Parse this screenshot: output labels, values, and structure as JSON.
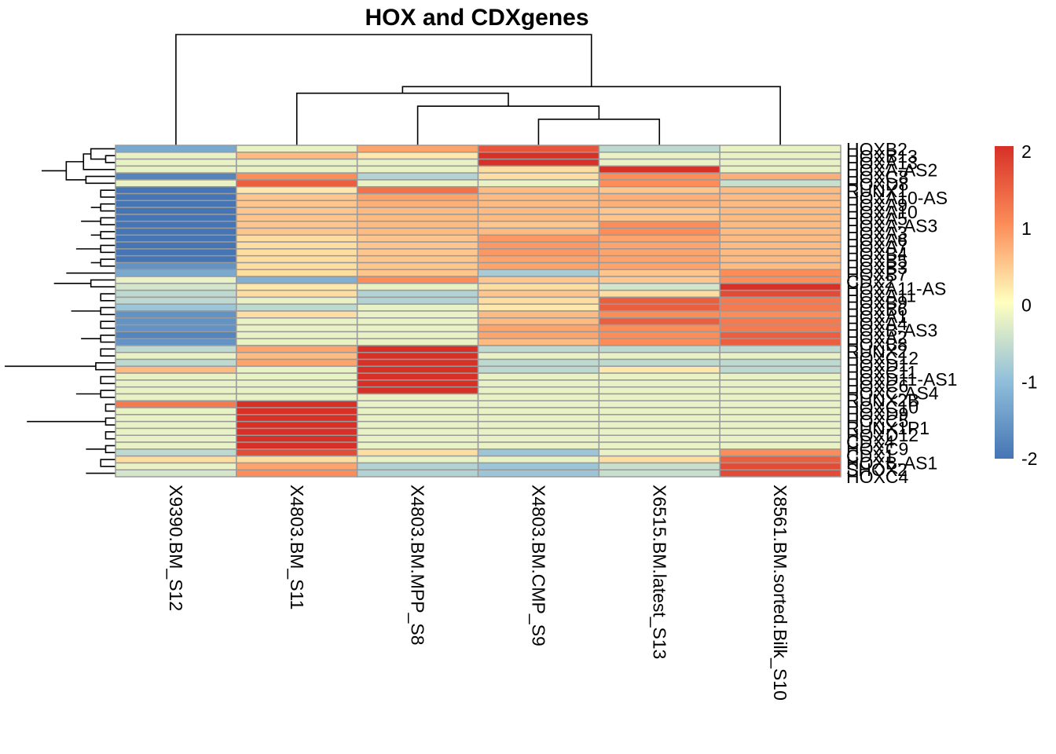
{
  "chart_data": {
    "type": "heatmap",
    "title": "HOX and CDXgenes",
    "columns": [
      "X9390.BM_S12",
      "X4803.BM_S11",
      "X4803.BM.MPP_S8",
      "X4803.BM.CMP_S9",
      "X6515.BM.latest_S13",
      "X8561.BM.sorted.Bilk_S10"
    ],
    "rows": [
      "HOXB2",
      "HOXB13",
      "HOXA13",
      "HOXA-AS2",
      "HOXC8",
      "HOXD8",
      "RUNX1",
      "HOXA10-AS",
      "HOXA9",
      "HOXA10",
      "HOXA5",
      "HOXA-AS3",
      "HOXA3",
      "HOXA6",
      "HOXA7",
      "HOXB4",
      "HOXB5",
      "HOXB3",
      "HOXB7",
      "CDX2",
      "HOXA11-AS",
      "HOXA11",
      "HOXB9",
      "HOXB6",
      "HOXA1",
      "HOXA4",
      "HOXB-AS3",
      "HOXA2",
      "HOXB8",
      "RUNX2",
      "HOXC12",
      "HOXD1",
      "HOXC11",
      "HOXD11-AS1",
      "HOXC6",
      "HOXC-AS4",
      "RUNX2B",
      "HOXC10",
      "HOXD9",
      "HOXC5",
      "RUNX1P1",
      "HOXD12",
      "CDX4",
      "HOXC9",
      "CDX1",
      "HOXB-AS1",
      "SHOX2",
      "HOXC4"
    ],
    "row_labels_visible": [
      "HOXB2",
      "HOXB13",
      "HOXA13",
      "HOXA-AS2",
      "HOXC8",
      "HOXD8",
      "RUNX1",
      "HOXA10-AS",
      "HOXA9",
      "HOXA10",
      "HOXA5",
      "HOXA-AS3",
      "HOXA3",
      "HOXA6",
      "HOXA7",
      "HOXB4",
      "HOXB5",
      "HOXB3",
      "HOXB7",
      "CDX2",
      "HOXA11-AS",
      "HOXA11",
      "HOXB9",
      "HOXB6",
      "HOXA1",
      "HOXA4",
      "HOXB-AS3",
      "HOXA2",
      "HOXB8",
      "RUNX2",
      "HOXC12",
      "HOXD1",
      "HOXC11",
      "HOXD11-AS1",
      "HOXC6",
      "HOXC-AS4",
      "RUNX2B",
      "HOXC10",
      "HOXD9",
      "HOXC5",
      "RUNX1P1",
      "HOXD12",
      "CDX4",
      "HOXC9",
      "CDX1",
      "HOXB-AS1",
      "SHOX2",
      "HOXC4"
    ],
    "values": [
      [
        -1.3,
        -0.2,
        0.8,
        1.6,
        -0.6,
        -0.2
      ],
      [
        -0.2,
        0.6,
        0.2,
        2.0,
        -0.2,
        -0.2
      ],
      [
        -0.2,
        -0.2,
        -0.2,
        2.0,
        -0.2,
        -0.2
      ],
      [
        -0.2,
        -0.2,
        -0.2,
        0.3,
        2.0,
        -0.2
      ],
      [
        -1.8,
        1.0,
        -0.7,
        0.3,
        1.0,
        0.7
      ],
      [
        -0.2,
        1.5,
        -0.2,
        -0.2,
        1.0,
        -0.5
      ],
      [
        -2.0,
        0.2,
        1.3,
        0.6,
        0.5,
        0.6
      ],
      [
        -2.0,
        0.5,
        0.8,
        0.6,
        0.7,
        0.6
      ],
      [
        -2.0,
        0.5,
        0.7,
        0.6,
        0.7,
        0.6
      ],
      [
        -2.0,
        0.5,
        0.6,
        0.6,
        0.5,
        0.6
      ],
      [
        -2.0,
        0.5,
        0.6,
        0.6,
        0.5,
        0.6
      ],
      [
        -2.0,
        0.5,
        0.6,
        0.5,
        1.0,
        0.6
      ],
      [
        -2.0,
        0.5,
        0.6,
        0.6,
        1.0,
        0.6
      ],
      [
        -2.0,
        0.3,
        0.5,
        0.9,
        0.8,
        0.6
      ],
      [
        -2.0,
        0.3,
        0.5,
        0.9,
        0.8,
        0.6
      ],
      [
        -2.0,
        0.3,
        0.5,
        0.9,
        0.8,
        0.6
      ],
      [
        -2.0,
        0.3,
        0.5,
        0.8,
        0.8,
        0.6
      ],
      [
        -1.6,
        0.3,
        0.5,
        0.8,
        0.8,
        0.6
      ],
      [
        -1.3,
        0.3,
        0.5,
        -0.8,
        0.5,
        1.0
      ],
      [
        -0.2,
        -1.2,
        1.0,
        0.5,
        0.5,
        1.0
      ],
      [
        -0.4,
        0.2,
        -0.2,
        0.3,
        -0.4,
        2.0
      ],
      [
        -0.6,
        0.3,
        -0.7,
        0.5,
        0.3,
        1.7
      ],
      [
        -0.6,
        -0.2,
        -0.7,
        0.3,
        1.5,
        1.2
      ],
      [
        -0.9,
        -0.6,
        -0.2,
        0.2,
        1.5,
        1.2
      ],
      [
        -1.6,
        0.3,
        -0.2,
        0.6,
        1.0,
        1.0
      ],
      [
        -1.6,
        -0.2,
        -0.2,
        0.6,
        1.5,
        1.2
      ],
      [
        -1.6,
        -0.2,
        -0.2,
        0.8,
        1.0,
        1.2
      ],
      [
        -1.8,
        -0.2,
        -0.2,
        0.8,
        1.0,
        1.5
      ],
      [
        -1.6,
        -0.2,
        -0.2,
        0.6,
        1.0,
        1.5
      ],
      [
        -0.6,
        0.8,
        2.0,
        -0.6,
        -0.6,
        -0.6
      ],
      [
        -0.2,
        0.6,
        2.0,
        -0.2,
        -0.2,
        -0.2
      ],
      [
        -0.6,
        0.8,
        2.0,
        -0.6,
        -0.6,
        -0.6
      ],
      [
        0.6,
        -0.2,
        2.0,
        -0.6,
        0.2,
        -0.6
      ],
      [
        -0.2,
        -0.2,
        2.0,
        -0.2,
        -0.2,
        -0.2
      ],
      [
        -0.2,
        -0.2,
        2.0,
        -0.2,
        -0.2,
        -0.2
      ],
      [
        -0.2,
        -0.2,
        2.0,
        -0.2,
        -0.2,
        -0.2
      ],
      [
        -0.2,
        -0.2,
        -0.2,
        -0.2,
        -0.2,
        -0.2
      ],
      [
        1.2,
        2.0,
        -0.2,
        -0.2,
        -0.2,
        -0.2
      ],
      [
        -0.2,
        2.0,
        -0.2,
        -0.2,
        -0.2,
        -0.2
      ],
      [
        -0.2,
        2.0,
        -0.2,
        -0.2,
        -0.2,
        -0.2
      ],
      [
        -0.2,
        2.0,
        -0.2,
        -0.2,
        -0.2,
        -0.2
      ],
      [
        -0.2,
        2.0,
        -0.2,
        -0.2,
        -0.2,
        -0.2
      ],
      [
        -0.2,
        2.0,
        -0.2,
        -0.2,
        -0.2,
        -0.2
      ],
      [
        -0.2,
        2.0,
        -0.2,
        -0.2,
        -0.2,
        -0.2
      ],
      [
        -0.6,
        1.7,
        0.3,
        -0.9,
        -0.2,
        1.0
      ],
      [
        0.3,
        0.3,
        -0.2,
        -0.2,
        0.3,
        1.5
      ],
      [
        -0.2,
        0.8,
        -0.7,
        -0.9,
        -0.5,
        1.7
      ],
      [
        -0.4,
        1.0,
        -0.7,
        -0.9,
        -0.5,
        1.7
      ]
    ],
    "color_scale": {
      "min": -2,
      "max": 2,
      "colors": [
        "#4575b4",
        "#91bfdb",
        "#ffffbf",
        "#fc8d59",
        "#d73027"
      ],
      "ticks": [
        "2",
        "1",
        "0",
        "-1",
        "-2"
      ]
    },
    "column_dendrogram": [
      [
        3,
        4,
        0.2
      ],
      [
        2,
        6,
        0.3
      ],
      [
        1,
        7,
        0.4
      ],
      [
        5,
        8,
        0.45
      ],
      [
        0,
        9,
        0.85
      ]
    ],
    "row_dendrogram": [
      [
        1,
        2,
        0.04
      ],
      [
        0,
        48,
        0.1
      ],
      [
        3,
        49,
        0.13
      ],
      [
        4,
        5,
        0.12
      ],
      [
        50,
        51,
        0.2
      ],
      [
        6,
        7,
        0.06
      ],
      [
        8,
        9,
        0.06
      ],
      [
        54,
        55,
        0.1
      ],
      [
        10,
        11,
        0.06
      ],
      [
        12,
        13,
        0.06
      ],
      [
        57,
        58,
        0.1
      ],
      [
        56,
        59,
        0.14
      ],
      [
        14,
        15,
        0.06
      ],
      [
        16,
        17,
        0.06
      ],
      [
        61,
        62,
        0.1
      ],
      [
        60,
        63,
        0.16
      ],
      [
        18,
        64,
        0.2
      ],
      [
        19,
        20,
        0.1
      ],
      [
        21,
        22,
        0.06
      ],
      [
        23,
        24,
        0.06
      ],
      [
        68,
        69,
        0.1
      ],
      [
        25,
        26,
        0.06
      ],
      [
        27,
        28,
        0.06
      ],
      [
        71,
        72,
        0.1
      ],
      [
        70,
        73,
        0.14
      ],
      [
        67,
        74,
        0.18
      ],
      [
        65,
        75,
        0.25
      ],
      [
        52,
        76,
        0.3
      ],
      [
        29,
        30,
        0.06
      ],
      [
        31,
        32,
        0.08
      ],
      [
        78,
        79,
        0.12
      ],
      [
        33,
        34,
        0.06
      ],
      [
        35,
        36,
        0.06
      ],
      [
        81,
        82,
        0.1
      ],
      [
        80,
        83,
        0.16
      ],
      [
        37,
        38,
        0.04
      ],
      [
        39,
        40,
        0.04
      ],
      [
        85,
        86,
        0.08
      ],
      [
        41,
        42,
        0.04
      ],
      [
        43,
        44,
        0.04
      ],
      [
        88,
        89,
        0.08
      ],
      [
        87,
        90,
        0.12
      ],
      [
        45,
        46,
        0.06
      ],
      [
        47,
        92,
        0.12
      ],
      [
        91,
        93,
        0.3
      ],
      [
        84,
        94,
        0.36
      ],
      [
        77,
        95,
        0.45
      ]
    ]
  }
}
